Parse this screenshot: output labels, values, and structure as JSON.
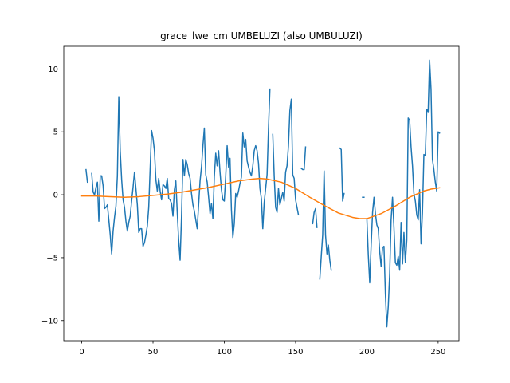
{
  "chart_data": {
    "type": "line",
    "title": "grace_lwe_cm UMBELUZI (also UMBULUZI)",
    "xlabel": "",
    "ylabel": "",
    "xlim": [
      -12.6,
      264.6
    ],
    "ylim": [
      -11.6,
      11.8
    ],
    "x_ticks": [
      0,
      50,
      100,
      150,
      200,
      250
    ],
    "y_ticks": [
      -10,
      -5,
      0,
      5,
      10
    ],
    "x_tick_labels": [
      "0",
      "50",
      "100",
      "150",
      "200",
      "250"
    ],
    "y_tick_labels": [
      "−10",
      "−5",
      "0",
      "5",
      "10"
    ],
    "grid": false,
    "legend": "none",
    "series": [
      {
        "color": "#1f77b4",
        "points": [
          [
            3,
            2.0
          ],
          [
            4,
            1.0
          ],
          [
            5,
            null
          ],
          [
            7,
            1.7
          ],
          [
            8,
            0.2
          ],
          [
            9,
            0.0
          ],
          [
            10,
            0.6
          ],
          [
            11,
            1.0
          ],
          [
            12,
            -2.1
          ],
          [
            13,
            1.5
          ],
          [
            14,
            1.5
          ],
          [
            15,
            0.7
          ],
          [
            16,
            -1.1
          ],
          [
            17,
            -1.0
          ],
          [
            18,
            -0.8
          ],
          [
            19,
            -2.0
          ],
          [
            20,
            -3.2
          ],
          [
            21,
            -4.7
          ],
          [
            22,
            -2.9
          ],
          [
            23,
            -1.8
          ],
          [
            24,
            -0.9
          ],
          [
            25,
            1.5
          ],
          [
            26,
            7.8
          ],
          [
            27,
            3.5
          ],
          [
            28,
            1.2
          ],
          [
            29,
            -0.4
          ],
          [
            30,
            -1.0
          ],
          [
            31,
            -2.1
          ],
          [
            32,
            -2.9
          ],
          [
            33,
            -2.2
          ],
          [
            34,
            -1.7
          ],
          [
            35,
            -0.5
          ],
          [
            36,
            0.6
          ],
          [
            37,
            1.8
          ],
          [
            38,
            0.5
          ],
          [
            39,
            -0.8
          ],
          [
            40,
            -3.0
          ],
          [
            41,
            -2.7
          ],
          [
            42,
            -2.7
          ],
          [
            43,
            -4.1
          ],
          [
            44,
            -3.8
          ],
          [
            45,
            -3.2
          ],
          [
            46,
            -2.5
          ],
          [
            47,
            -1.0
          ],
          [
            48,
            2.1
          ],
          [
            49,
            5.1
          ],
          [
            50,
            4.5
          ],
          [
            51,
            3.5
          ],
          [
            52,
            1.2
          ],
          [
            53,
            0.3
          ],
          [
            54,
            1.3
          ],
          [
            55,
            0.3
          ],
          [
            56,
            -0.4
          ],
          [
            57,
            0.8
          ],
          [
            58,
            0.7
          ],
          [
            59,
            0.5
          ],
          [
            60,
            1.3
          ],
          [
            61,
            -0.3
          ],
          [
            62,
            -0.4
          ],
          [
            63,
            -0.7
          ],
          [
            64,
            -1.7
          ],
          [
            65,
            0.4
          ],
          [
            66,
            1.1
          ],
          [
            67,
            -1.4
          ],
          [
            68,
            -3.6
          ],
          [
            69,
            -5.2
          ],
          [
            70,
            -1.7
          ],
          [
            71,
            2.8
          ],
          [
            72,
            1.5
          ],
          [
            73,
            2.8
          ],
          [
            74,
            2.4
          ],
          [
            75,
            1.7
          ],
          [
            76,
            1.3
          ],
          [
            77,
            0.1
          ],
          [
            78,
            -0.8
          ],
          [
            79,
            -1.3
          ],
          [
            80,
            -2.0
          ],
          [
            81,
            -2.7
          ],
          [
            82,
            -0.8
          ],
          [
            83,
            1.1
          ],
          [
            84,
            2.2
          ],
          [
            85,
            3.9
          ],
          [
            86,
            5.3
          ],
          [
            87,
            1.6
          ],
          [
            88,
            1.0
          ],
          [
            89,
            -0.2
          ],
          [
            90,
            -1.5
          ],
          [
            91,
            -0.7
          ],
          [
            92,
            -1.9
          ],
          [
            93,
            1.4
          ],
          [
            94,
            3.3
          ],
          [
            95,
            2.3
          ],
          [
            96,
            3.5
          ],
          [
            97,
            1.8
          ],
          [
            98,
            0.4
          ],
          [
            99,
            -0.4
          ],
          [
            100,
            -0.5
          ],
          [
            101,
            1.5
          ],
          [
            102,
            3.9
          ],
          [
            103,
            2.2
          ],
          [
            104,
            2.9
          ],
          [
            105,
            -1.2
          ],
          [
            106,
            -3.4
          ],
          [
            107,
            -2.3
          ],
          [
            108,
            0.1
          ],
          [
            109,
            -0.2
          ],
          [
            110,
            0.3
          ],
          [
            111,
            0.9
          ],
          [
            112,
            1.4
          ],
          [
            113,
            4.9
          ],
          [
            114,
            3.8
          ],
          [
            115,
            4.4
          ],
          [
            116,
            2.7
          ],
          [
            117,
            2.2
          ],
          [
            118,
            1.8
          ],
          [
            119,
            1.5
          ],
          [
            120,
            2.3
          ],
          [
            121,
            3.5
          ],
          [
            122,
            3.9
          ],
          [
            123,
            3.5
          ],
          [
            124,
            2.5
          ],
          [
            125,
            0.5
          ],
          [
            126,
            -0.3
          ],
          [
            127,
            -2.7
          ],
          [
            128,
            -0.6
          ],
          [
            129,
            0.5
          ],
          [
            130,
            1.6
          ],
          [
            131,
            5.3
          ],
          [
            132,
            8.4
          ],
          [
            133,
            null
          ],
          [
            134,
            4.8
          ],
          [
            135,
            1.5
          ],
          [
            136,
            -1.0
          ],
          [
            137,
            -1.4
          ],
          [
            138,
            0.5
          ],
          [
            139,
            -0.8
          ],
          [
            140,
            -0.3
          ],
          [
            141,
            0.2
          ],
          [
            142,
            -0.5
          ],
          [
            143,
            1.8
          ],
          [
            144,
            2.3
          ],
          [
            145,
            3.9
          ],
          [
            146,
            6.7
          ],
          [
            147,
            7.6
          ],
          [
            148,
            1.6
          ],
          [
            149,
            1.3
          ],
          [
            150,
            -0.4
          ],
          [
            151,
            -1.0
          ],
          [
            152,
            -1.6
          ],
          [
            153,
            null
          ],
          [
            154,
            2.1
          ],
          [
            155,
            2.0
          ],
          [
            156,
            2.0
          ],
          [
            157,
            3.8
          ],
          [
            158,
            null
          ],
          [
            162,
            -2.3
          ],
          [
            163,
            -1.4
          ],
          [
            164,
            -1.1
          ],
          [
            165,
            -2.6
          ],
          [
            166,
            null
          ],
          [
            167,
            -6.7
          ],
          [
            168,
            -4.9
          ],
          [
            169,
            -3.2
          ],
          [
            170,
            1.9
          ],
          [
            171,
            -3.2
          ],
          [
            172,
            -4.7
          ],
          [
            173,
            -4.0
          ],
          [
            174,
            -5.2
          ],
          [
            175,
            -6.0
          ],
          [
            176,
            null
          ],
          [
            181,
            3.7
          ],
          [
            182,
            3.6
          ],
          [
            183,
            -0.5
          ],
          [
            184,
            0.1
          ],
          [
            185,
            null
          ],
          [
            197,
            -0.2
          ],
          [
            198,
            -0.2
          ],
          [
            199,
            null
          ],
          [
            200,
            -1.9
          ],
          [
            201,
            -4.8
          ],
          [
            202,
            -7.0
          ],
          [
            203,
            -4.0
          ],
          [
            204,
            -1.4
          ],
          [
            205,
            -0.2
          ],
          [
            206,
            -1.5
          ],
          [
            207,
            -2.4
          ],
          [
            208,
            -2.7
          ],
          [
            209,
            -4.5
          ],
          [
            210,
            -5.7
          ],
          [
            211,
            -4.2
          ],
          [
            212,
            -4.1
          ],
          [
            213,
            -7.9
          ],
          [
            214,
            -10.5
          ],
          [
            215,
            -8.9
          ],
          [
            216,
            -6.3
          ],
          [
            217,
            -2.0
          ],
          [
            218,
            -0.2
          ],
          [
            219,
            -2.6
          ],
          [
            220,
            -5.4
          ],
          [
            221,
            -5.6
          ],
          [
            222,
            -4.9
          ],
          [
            223,
            -6.0
          ],
          [
            224,
            -2.2
          ],
          [
            225,
            -5.5
          ],
          [
            226,
            -3.0
          ],
          [
            227,
            -5.4
          ],
          [
            228,
            -3.6
          ],
          [
            229,
            6.1
          ],
          [
            230,
            5.9
          ],
          [
            231,
            3.8
          ],
          [
            232,
            2.3
          ],
          [
            233,
            0.1
          ],
          [
            234,
            -0.5
          ],
          [
            235,
            -1.6
          ],
          [
            236,
            -2.0
          ],
          [
            237,
            0.4
          ],
          [
            238,
            -3.9
          ],
          [
            239,
            -1.4
          ],
          [
            240,
            3.2
          ],
          [
            241,
            3.1
          ],
          [
            242,
            6.8
          ],
          [
            243,
            6.6
          ],
          [
            244,
            10.7
          ],
          [
            245,
            8.4
          ],
          [
            246,
            2.8
          ],
          [
            247,
            2.0
          ],
          [
            248,
            1.0
          ],
          [
            249,
            0.3
          ],
          [
            250,
            5.0
          ],
          [
            251,
            4.9
          ]
        ]
      },
      {
        "color": "#ff7f0e",
        "points": [
          [
            0,
            -0.1
          ],
          [
            10,
            -0.1
          ],
          [
            20,
            -0.15
          ],
          [
            30,
            -0.2
          ],
          [
            40,
            -0.15
          ],
          [
            50,
            -0.05
          ],
          [
            60,
            0.05
          ],
          [
            70,
            0.2
          ],
          [
            80,
            0.4
          ],
          [
            90,
            0.6
          ],
          [
            100,
            0.85
          ],
          [
            110,
            1.1
          ],
          [
            120,
            1.25
          ],
          [
            125,
            1.3
          ],
          [
            130,
            1.25
          ],
          [
            140,
            1.0
          ],
          [
            150,
            0.5
          ],
          [
            160,
            -0.2
          ],
          [
            170,
            -0.85
          ],
          [
            180,
            -1.45
          ],
          [
            190,
            -1.8
          ],
          [
            195,
            -1.9
          ],
          [
            200,
            -1.9
          ],
          [
            210,
            -1.5
          ],
          [
            220,
            -0.9
          ],
          [
            230,
            -0.2
          ],
          [
            240,
            0.3
          ],
          [
            245,
            0.45
          ],
          [
            251,
            0.55
          ]
        ]
      }
    ]
  }
}
